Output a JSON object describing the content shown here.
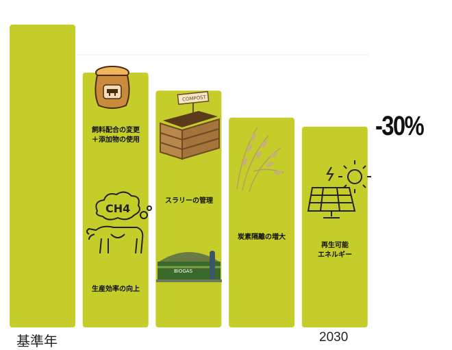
{
  "colors": {
    "bar": "#c4cd2a",
    "text": "#111111"
  },
  "chart_data": {
    "type": "bar",
    "categories": [
      "基準年",
      "",
      "",
      "",
      "2030"
    ],
    "values": [
      100,
      84,
      78,
      69,
      66
    ],
    "ylim": [
      0,
      105
    ],
    "bar_labels": [
      [],
      [
        "飼料配合の変更\n＋添加物の使用",
        "生産効率の向上"
      ],
      [
        "スラリーの管理"
      ],
      [
        "炭素隔離の増大"
      ],
      [
        "再生可能\nエネルギー"
      ]
    ],
    "annotation": "-30%",
    "icons": [
      "feed-sack-icon",
      "methane-cow-icon",
      "compost-box-icon",
      "biogas-plant-icon",
      "wheat-icon",
      "solar-panel-icon"
    ],
    "grid": false
  }
}
